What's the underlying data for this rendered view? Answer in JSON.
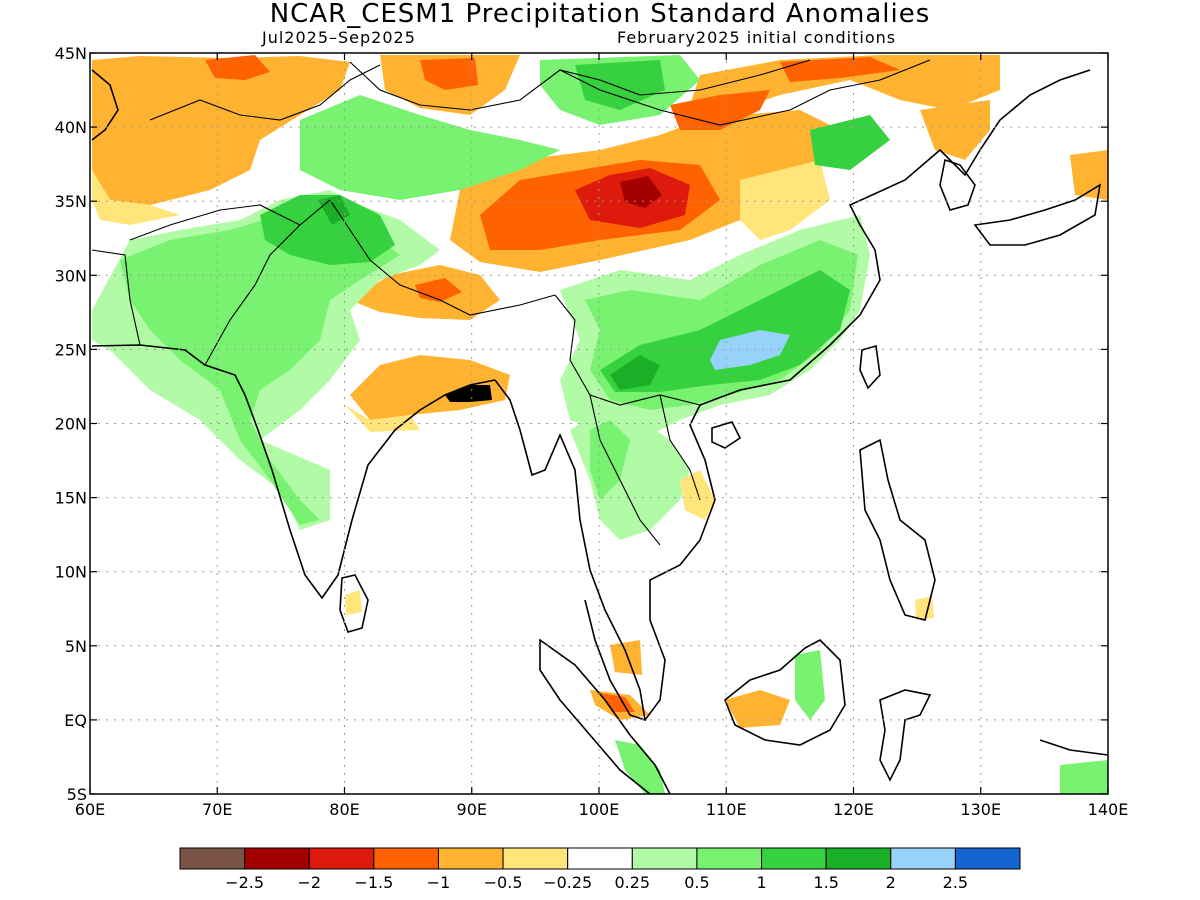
{
  "header": {
    "title": "NCAR_CESM1 Precipitation Standard Anomalies",
    "period": "Jul2025–Sep2025",
    "init": "February2025 initial conditions"
  },
  "map": {
    "lon_range": [
      60,
      140
    ],
    "lat_range": [
      -5,
      45
    ],
    "lon_ticks": [
      {
        "v": 60,
        "label": "60E"
      },
      {
        "v": 70,
        "label": "70E"
      },
      {
        "v": 80,
        "label": "80E"
      },
      {
        "v": 90,
        "label": "90E"
      },
      {
        "v": 100,
        "label": "100E"
      },
      {
        "v": 110,
        "label": "110E"
      },
      {
        "v": 120,
        "label": "120E"
      },
      {
        "v": 130,
        "label": "130E"
      },
      {
        "v": 140,
        "label": "140E"
      }
    ],
    "lat_ticks": [
      {
        "v": 45,
        "label": "45N"
      },
      {
        "v": 40,
        "label": "40N"
      },
      {
        "v": 35,
        "label": "35N"
      },
      {
        "v": 30,
        "label": "30N"
      },
      {
        "v": 25,
        "label": "25N"
      },
      {
        "v": 20,
        "label": "20N"
      },
      {
        "v": 15,
        "label": "15N"
      },
      {
        "v": 10,
        "label": "10N"
      },
      {
        "v": 5,
        "label": "5N"
      },
      {
        "v": 0,
        "label": "EQ"
      },
      {
        "v": -5,
        "label": "5S"
      }
    ]
  },
  "legend": {
    "colors": [
      "#7a5346",
      "#a50000",
      "#dd1a0c",
      "#ff6200",
      "#ffb330",
      "#ffe57a",
      "#ffffff",
      "#b2fba6",
      "#78f270",
      "#35d13f",
      "#1aaf26",
      "#96d2fa",
      "#1464d2"
    ],
    "labels": [
      "−2.5",
      "−2",
      "−1.5",
      "−1",
      "−0.5",
      "−0.25",
      "0.25",
      "0.5",
      "1",
      "1.5",
      "2",
      "2.5"
    ]
  }
}
